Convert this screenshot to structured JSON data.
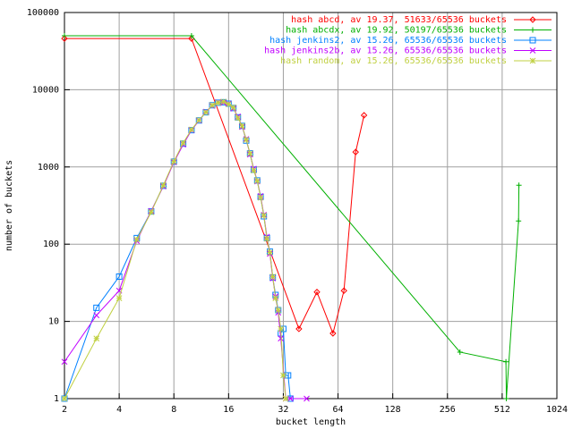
{
  "chart_data": {
    "type": "line",
    "xlabel": "bucket length",
    "ylabel": "number of buckets",
    "xscale": "log",
    "yscale": "log",
    "grid": true,
    "legend": "top-right",
    "xlim": [
      2,
      1024
    ],
    "xticks": [
      2,
      4,
      8,
      16,
      32,
      64,
      128,
      256,
      512,
      1024
    ],
    "ylim": [
      1,
      100000
    ],
    "yticks": [
      1,
      10,
      100,
      1000,
      10000,
      100000
    ],
    "series": [
      {
        "name": "hash abcd, av 19.37, 51633/65536 buckets",
        "color": "#ff0000",
        "marker": "diamond",
        "x": [
          2,
          10,
          39,
          49,
          60,
          69,
          80,
          89
        ],
        "values": [
          46000,
          46000,
          8,
          24,
          7,
          25,
          1560,
          4670
        ]
      },
      {
        "name": "hash abcdx, av 19.92, 50197/65536 buckets",
        "color": "#00b000",
        "marker": "plus",
        "x": [
          2,
          10,
          300,
          537,
          540,
          630,
          633
        ],
        "values": [
          50000,
          50000,
          4,
          3,
          1,
          200,
          580
        ]
      },
      {
        "name": "hash jenkins2, av 15.26, 65536/65536 buckets",
        "color": "#0080ff",
        "marker": "square",
        "x": [
          2,
          3,
          4,
          5,
          6,
          7,
          8,
          9,
          10,
          11,
          12,
          13,
          14,
          15,
          16,
          17,
          18,
          19,
          20,
          21,
          22,
          23,
          24,
          25,
          26,
          27,
          28,
          29,
          30,
          31,
          32,
          33,
          34,
          35
        ],
        "values": [
          1,
          15,
          38,
          120,
          265,
          570,
          1170,
          2000,
          3000,
          4000,
          5100,
          6300,
          6800,
          6900,
          6600,
          5800,
          4400,
          3400,
          2200,
          1500,
          920,
          670,
          410,
          230,
          120,
          80,
          37,
          22,
          14,
          7,
          8,
          2,
          2,
          1
        ]
      },
      {
        "name": "hash jenkins2b, av 15.26, 65536/65536 buckets",
        "color": "#c000ff",
        "marker": "cross",
        "x": [
          2,
          3,
          4,
          5,
          6,
          7,
          8,
          9,
          10,
          11,
          12,
          13,
          14,
          15,
          16,
          17,
          18,
          19,
          20,
          21,
          22,
          23,
          24,
          25,
          26,
          27,
          28,
          29,
          30,
          31,
          33,
          35,
          43
        ],
        "values": [
          3,
          12,
          25,
          110,
          270,
          560,
          1150,
          1950,
          3000,
          4000,
          5200,
          6200,
          6900,
          6800,
          6600,
          5700,
          4500,
          3300,
          2300,
          1450,
          950,
          650,
          420,
          240,
          125,
          75,
          36,
          21,
          13,
          6,
          1,
          1,
          1
        ]
      },
      {
        "name": "hash random, av 15.26, 65536/65536 buckets",
        "color": "#c0d040",
        "marker": "star",
        "x": [
          2,
          3,
          4,
          5,
          6,
          7,
          8,
          9,
          10,
          11,
          12,
          13,
          14,
          15,
          16,
          17,
          18,
          19,
          20,
          21,
          22,
          23,
          24,
          25,
          26,
          27,
          28,
          29,
          30,
          31,
          32,
          33
        ],
        "values": [
          1,
          6,
          20,
          115,
          260,
          580,
          1180,
          2050,
          3050,
          4050,
          5100,
          6300,
          6800,
          7000,
          6500,
          5900,
          4300,
          3400,
          2250,
          1500,
          900,
          660,
          400,
          235,
          118,
          78,
          38,
          20,
          14,
          8,
          2,
          1
        ]
      }
    ]
  }
}
